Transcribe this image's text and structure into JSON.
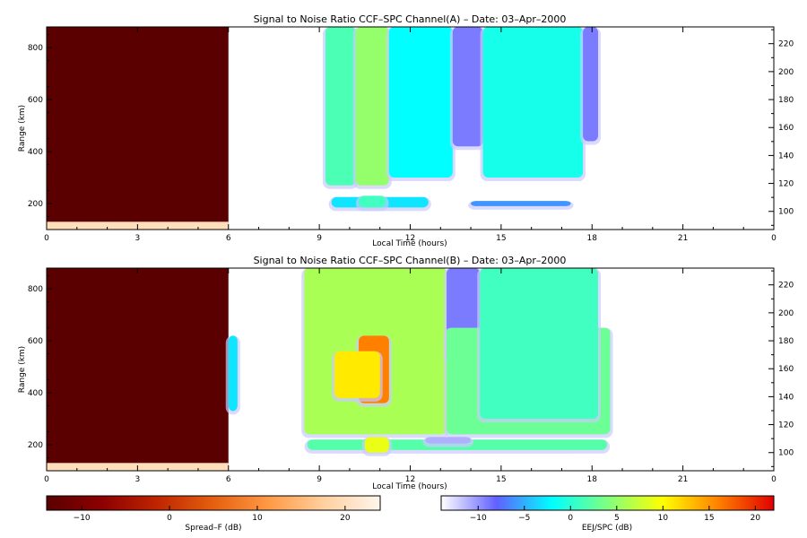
{
  "chart_data": [
    {
      "type": "heatmap",
      "title": "Signal to Noise Ratio CCF–SPC Channel(A) – Date: 03–Apr–2000",
      "xlabel": "Local Time (hours)",
      "ylabel": "Range (km)",
      "xlim": [
        0,
        24
      ],
      "ylim": [
        100,
        880
      ],
      "y2lim": [
        87,
        232
      ],
      "xticks": [
        "0",
        "3",
        "6",
        "9",
        "12",
        "15",
        "18",
        "21",
        "0"
      ],
      "yticks": [
        200,
        400,
        600,
        800
      ],
      "y2ticks": [
        100,
        120,
        140,
        160,
        180,
        200,
        220
      ],
      "masked_region": {
        "x": [
          0,
          6
        ],
        "fill_db": -14
      },
      "bottom_band": {
        "x": [
          0,
          6
        ],
        "y": [
          100,
          130
        ],
        "db": 20
      },
      "blobs": [
        {
          "t": [
            9.2,
            10.2
          ],
          "h": [
            270,
            880
          ],
          "snr": 1.5
        },
        {
          "t": [
            10.2,
            11.3
          ],
          "h": [
            270,
            880
          ],
          "snr": 5
        },
        {
          "t": [
            11.3,
            13.4
          ],
          "h": [
            300,
            880
          ],
          "snr": -2
        },
        {
          "t": [
            13.4,
            14.4
          ],
          "h": [
            420,
            880
          ],
          "snr": -9
        },
        {
          "t": [
            14.4,
            17.7
          ],
          "h": [
            300,
            880
          ],
          "snr": -1
        },
        {
          "t": [
            17.7,
            18.2
          ],
          "h": [
            440,
            880
          ],
          "snr": -9
        },
        {
          "t": [
            9.4,
            12.6
          ],
          "h": [
            185,
            225
          ],
          "snr": -3
        },
        {
          "t": [
            10.3,
            11.2
          ],
          "h": [
            185,
            230
          ],
          "snr": 1
        },
        {
          "t": [
            14.0,
            17.3
          ],
          "h": [
            190,
            210
          ],
          "snr": -6
        }
      ]
    },
    {
      "type": "heatmap",
      "title": "Signal to Noise Ratio CCF–SPC Channel(B) – Date: 03–Apr–2000",
      "xlabel": "Local Time (hours)",
      "ylabel": "Range (km)",
      "xlim": [
        0,
        24
      ],
      "ylim": [
        100,
        880
      ],
      "y2lim": [
        87,
        232
      ],
      "xticks": [
        "0",
        "3",
        "6",
        "9",
        "12",
        "15",
        "18",
        "21",
        "0"
      ],
      "yticks": [
        200,
        400,
        600,
        800
      ],
      "y2ticks": [
        100,
        120,
        140,
        160,
        180,
        200,
        220
      ],
      "masked_region": {
        "x": [
          0,
          6
        ],
        "fill_db": -14
      },
      "bottom_band": {
        "x": [
          0,
          6
        ],
        "y": [
          100,
          130
        ],
        "db": 20
      },
      "blobs": [
        {
          "t": [
            8.5,
            13.2
          ],
          "h": [
            240,
            880
          ],
          "snr": 6
        },
        {
          "t": [
            13.2,
            14.3
          ],
          "h": [
            520,
            880
          ],
          "snr": -9
        },
        {
          "t": [
            13.2,
            18.6
          ],
          "h": [
            240,
            650
          ],
          "snr": 3
        },
        {
          "t": [
            14.3,
            18.2
          ],
          "h": [
            300,
            880
          ],
          "snr": 1
        },
        {
          "t": [
            10.3,
            11.3
          ],
          "h": [
            360,
            620
          ],
          "snr": 16
        },
        {
          "t": [
            9.5,
            11.0
          ],
          "h": [
            380,
            560
          ],
          "snr": 11
        },
        {
          "t": [
            6.0,
            6.3
          ],
          "h": [
            330,
            620
          ],
          "snr": -3
        },
        {
          "t": [
            8.6,
            18.5
          ],
          "h": [
            180,
            220
          ],
          "snr": 2
        },
        {
          "t": [
            10.5,
            11.3
          ],
          "h": [
            170,
            230
          ],
          "snr": 9
        },
        {
          "t": [
            12.5,
            14.0
          ],
          "h": [
            205,
            230
          ],
          "snr": -11
        }
      ]
    }
  ],
  "colorbars": [
    {
      "label": "Spread–F (dB)",
      "range": [
        -14,
        24
      ],
      "ticks": [
        "−10",
        "0",
        "10",
        "20"
      ],
      "tick_values": [
        -10,
        0,
        10,
        20
      ],
      "colors": [
        "#5a0000",
        "#8c0000",
        "#c02500",
        "#e46010",
        "#ff9a45",
        "#ffd0a0",
        "#fff6ec"
      ]
    },
    {
      "label": "EEJ/SPC (dB)",
      "range": [
        -14,
        22
      ],
      "ticks": [
        "−10",
        "−5",
        "0",
        "5",
        "10",
        "15",
        "20"
      ],
      "tick_values": [
        -10,
        -5,
        0,
        5,
        10,
        15,
        20
      ],
      "colors": [
        "#ffffff",
        "#6060ff",
        "#00ffff",
        "#80ff80",
        "#ffff00",
        "#ff8000",
        "#e00000"
      ]
    }
  ]
}
